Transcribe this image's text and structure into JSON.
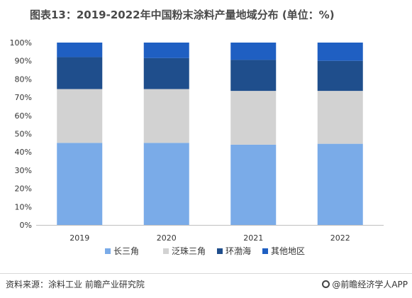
{
  "title": "图表13：2019-2022年中国粉末涂料产量地域分布 (单位：%)",
  "source": "资料来源：涂料工业 前瞻产业研究院",
  "brand": "@前瞻经济学人APP",
  "chart_data": {
    "type": "bar",
    "stacked": true,
    "categories": [
      "2019",
      "2020",
      "2021",
      "2022"
    ],
    "series": [
      {
        "name": "长三角",
        "values": [
          45,
          45,
          44,
          44.5
        ],
        "color": "#7aabe8"
      },
      {
        "name": "泛珠三角",
        "values": [
          29.5,
          29.5,
          29.5,
          29
        ],
        "color": "#d2d2d2"
      },
      {
        "name": "环渤海",
        "values": [
          17.5,
          17,
          17,
          16.5
        ],
        "color": "#1f4e8c"
      },
      {
        "name": "其他地区",
        "values": [
          8,
          8.5,
          9.5,
          10
        ],
        "color": "#1f5fc2"
      }
    ],
    "ylim": [
      0,
      100
    ],
    "yticks": [
      "0%",
      "10%",
      "20%",
      "30%",
      "40%",
      "50%",
      "60%",
      "70%",
      "80%",
      "90%",
      "100%"
    ],
    "grid": false,
    "legend_position": "bottom"
  }
}
